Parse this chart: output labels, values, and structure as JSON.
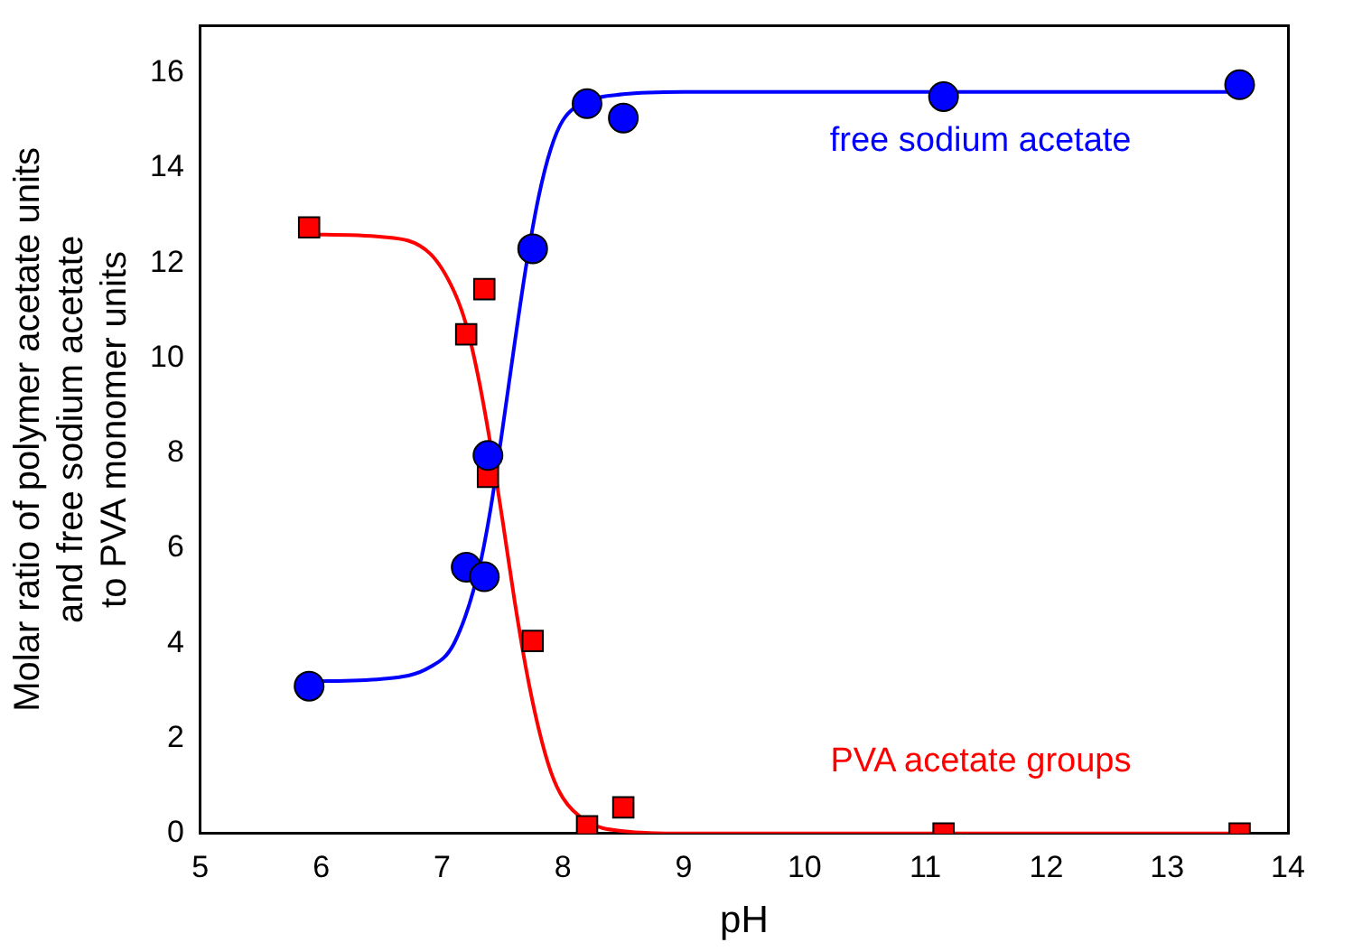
{
  "chart_data": {
    "type": "scatter",
    "xlabel": "pH",
    "ylabel": "Molar ratio of polymer acetate units\nand free sodium acetate\nto PVA monomer units",
    "xlim": [
      5,
      14
    ],
    "xticks": [
      5,
      6,
      7,
      8,
      9,
      10,
      11,
      12,
      13,
      14
    ],
    "ylim": [
      0,
      17
    ],
    "yticks": [
      0,
      2,
      4,
      6,
      8,
      10,
      12,
      14,
      16
    ],
    "grid": false,
    "legend": false,
    "series": [
      {
        "name": "free sodium acetate",
        "marker": "circle",
        "color": "#0000ff",
        "x": [
          5.9,
          7.2,
          7.35,
          7.38,
          7.75,
          8.2,
          8.5,
          11.15,
          13.6
        ],
        "values": [
          3.1,
          5.6,
          5.4,
          7.95,
          12.3,
          15.35,
          15.05,
          15.5,
          15.75
        ]
      },
      {
        "name": "PVA acetate groups",
        "marker": "square",
        "color": "#ff0000",
        "x": [
          5.9,
          7.2,
          7.35,
          7.38,
          7.75,
          8.2,
          8.5,
          11.15,
          13.6
        ],
        "values": [
          12.75,
          10.5,
          11.45,
          7.5,
          4.05,
          0.15,
          0.55,
          0.0,
          0.0
        ]
      },
      {
        "type": "line",
        "marker": "none",
        "color": "#0000ff",
        "x": [
          5.9,
          6.5,
          6.9,
          7.1,
          7.3,
          7.4,
          7.5,
          7.6,
          7.7,
          7.8,
          7.9,
          8.0,
          8.2,
          8.5,
          9,
          13.6
        ],
        "values": [
          3.2,
          3.25,
          3.5,
          4.0,
          5.5,
          6.8,
          8.5,
          10.3,
          12.0,
          13.4,
          14.4,
          15.0,
          15.4,
          15.55,
          15.6,
          15.6
        ]
      },
      {
        "type": "line",
        "marker": "none",
        "color": "#ff0000",
        "x": [
          5.9,
          6.5,
          6.9,
          7.1,
          7.2,
          7.3,
          7.4,
          7.5,
          7.6,
          7.7,
          7.8,
          7.9,
          8.0,
          8.2,
          8.5,
          9,
          13.6
        ],
        "values": [
          12.6,
          12.55,
          12.2,
          11.4,
          10.7,
          9.6,
          8.2,
          6.6,
          4.9,
          3.4,
          2.2,
          1.3,
          0.75,
          0.25,
          0.05,
          0,
          0
        ]
      }
    ]
  }
}
